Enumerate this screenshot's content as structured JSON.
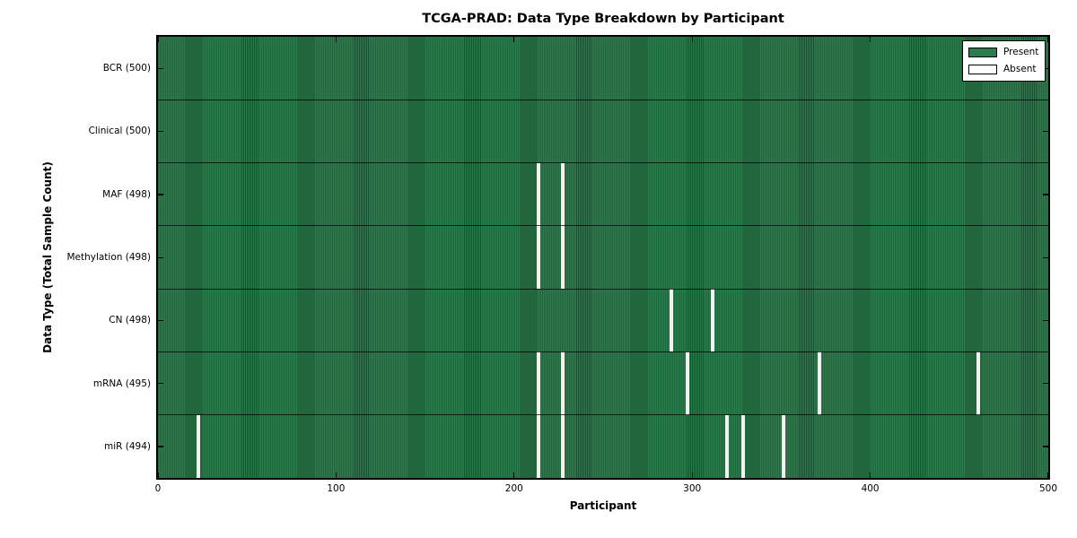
{
  "figure": {
    "title": "TCGA-PRAD: Data Type Breakdown by Participant",
    "xlabel": "Participant",
    "ylabel": "Data Type (Total Sample Count)"
  },
  "legend": {
    "items": [
      {
        "label": "Present",
        "color": "#2d7c4d"
      },
      {
        "label": "Absent",
        "color": "#ffffff"
      }
    ],
    "position": "upper right"
  },
  "chart_data": {
    "type": "heatmap",
    "title": "TCGA-PRAD: Data Type Breakdown by Participant",
    "xlabel": "Participant",
    "ylabel": "Data Type (Total Sample Count)",
    "x_range": [
      0,
      500
    ],
    "x_ticks": [
      0,
      100,
      200,
      300,
      400,
      500
    ],
    "n_participants": 500,
    "grid": false,
    "legend_entries": [
      "Present",
      "Absent"
    ],
    "legend_position": "upper right",
    "rows": [
      {
        "label": "BCR (500)",
        "data_type": "BCR",
        "total": 500,
        "absent_participants": []
      },
      {
        "label": "Clinical (500)",
        "data_type": "Clinical",
        "total": 500,
        "absent_participants": []
      },
      {
        "label": "MAF (498)",
        "data_type": "MAF",
        "total": 498,
        "absent_participants": [
          213,
          227
        ]
      },
      {
        "label": "Methylation (498)",
        "data_type": "Methylation",
        "total": 498,
        "absent_participants": [
          213,
          227
        ]
      },
      {
        "label": "CN (498)",
        "data_type": "CN",
        "total": 498,
        "absent_participants": [
          288,
          311
        ]
      },
      {
        "label": "mRNA (495)",
        "data_type": "mRNA",
        "total": 495,
        "absent_participants": [
          213,
          227,
          297,
          371,
          460
        ]
      },
      {
        "label": "miR (494)",
        "data_type": "miR",
        "total": 494,
        "absent_participants": [
          22,
          213,
          227,
          319,
          328,
          351
        ]
      }
    ],
    "colors": {
      "present": "#2d7c4d",
      "present_edge": "#16512f",
      "absent": "#ffffff",
      "frame": "#000000",
      "background": "#ffffff"
    }
  }
}
